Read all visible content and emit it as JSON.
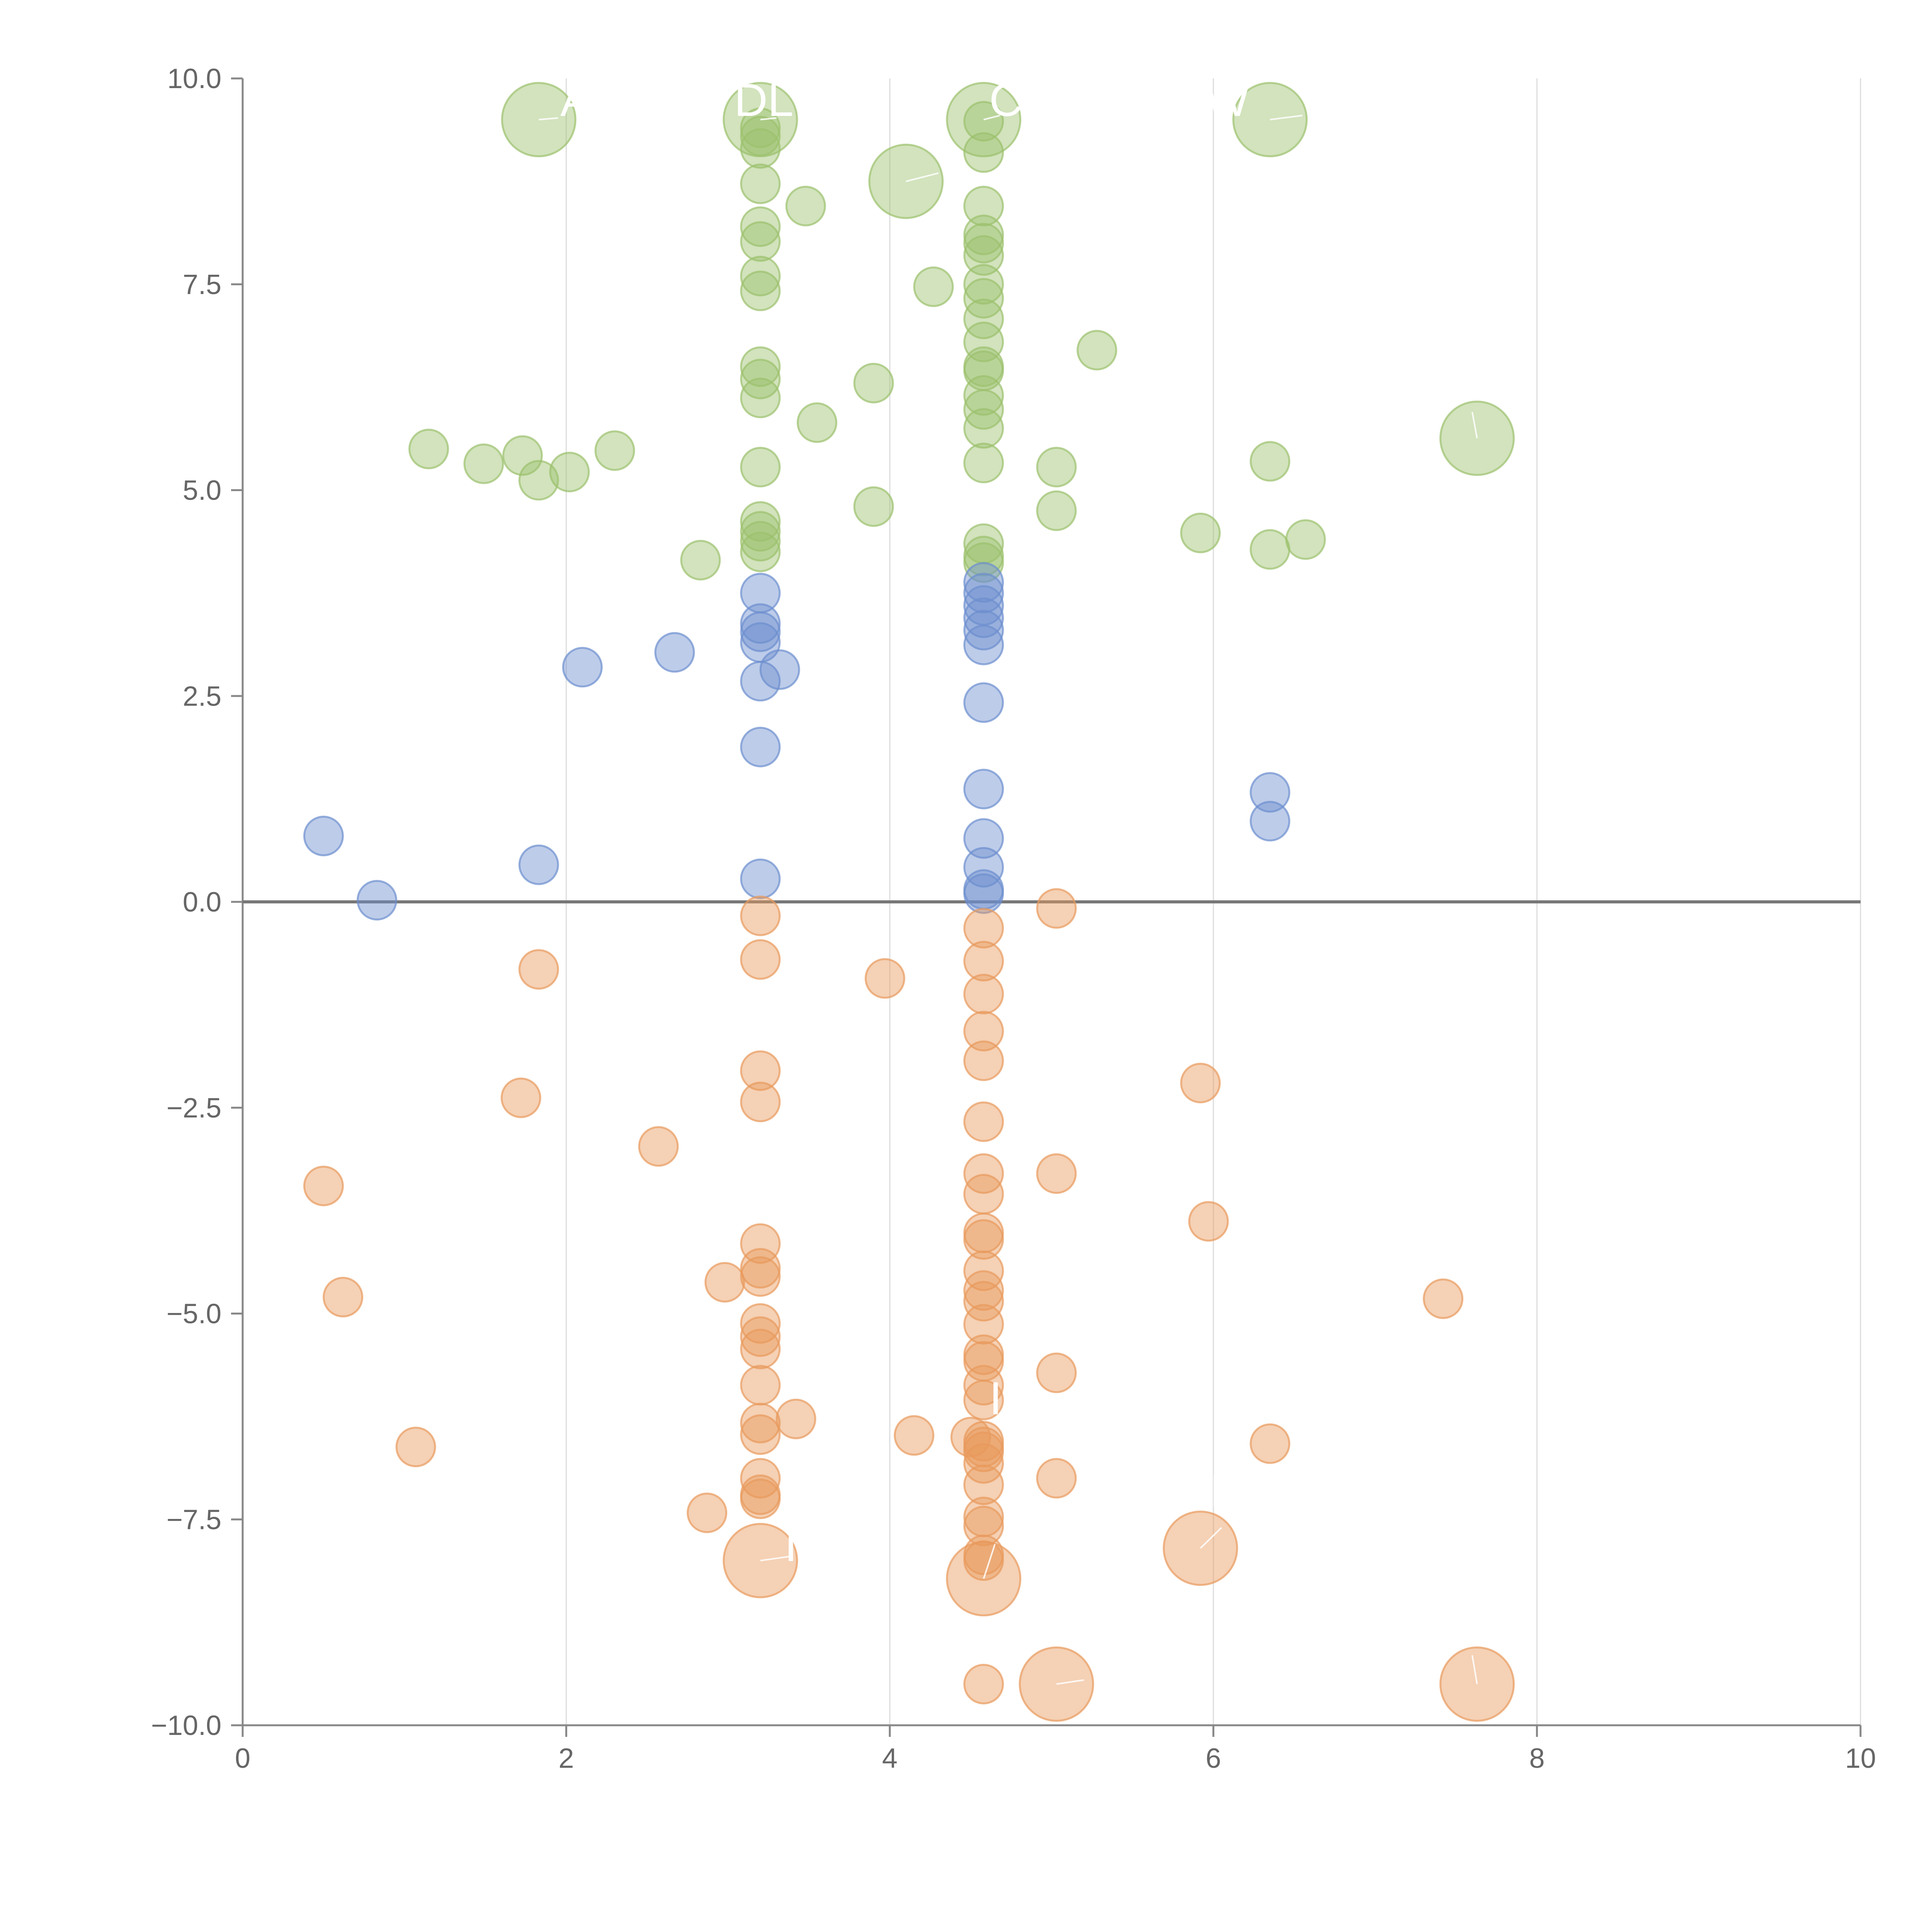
{
  "chart_data": {
    "type": "scatter",
    "title": "",
    "xlabel": "",
    "ylabel": "",
    "xlim": [
      0,
      10
    ],
    "ylim": [
      -10,
      10
    ],
    "x_ticks": [
      "0",
      "2",
      "4",
      "6",
      "8",
      "10"
    ],
    "y_ticks": [
      "−10.0",
      "−7.5",
      "−5.0",
      "−2.5",
      "0.0",
      "2.5",
      "5.0",
      "7.5",
      "10.0"
    ],
    "x_tick_values": [
      0,
      2,
      4,
      6,
      8,
      10
    ],
    "y_tick_values": [
      -10,
      -7.5,
      -5,
      -2.5,
      0,
      2.5,
      5,
      7.5,
      10
    ],
    "grid": "vertical",
    "legend": "none",
    "colors": {
      "green": "#9bc06c",
      "blue": "#6c8fcf",
      "orange": "#e89a5c"
    },
    "series": [
      {
        "name": "green",
        "color": "#9bc06c",
        "points": [
          [
            1.83,
            9.5,
            "large"
          ],
          [
            3.2,
            9.5,
            "large"
          ],
          [
            4.58,
            9.5,
            "large"
          ],
          [
            6.35,
            9.5,
            "large"
          ],
          [
            4.1,
            8.75,
            "large"
          ],
          [
            7.63,
            5.63,
            "large"
          ],
          [
            3.2,
            9.4
          ],
          [
            3.2,
            9.3
          ],
          [
            3.2,
            9.15
          ],
          [
            3.2,
            8.72
          ],
          [
            3.2,
            8.2
          ],
          [
            3.2,
            8.02
          ],
          [
            3.2,
            7.6
          ],
          [
            3.2,
            7.42
          ],
          [
            3.2,
            6.5
          ],
          [
            3.2,
            6.35
          ],
          [
            3.2,
            6.12
          ],
          [
            3.2,
            5.28
          ],
          [
            3.2,
            4.62
          ],
          [
            3.2,
            4.5
          ],
          [
            3.2,
            4.38
          ],
          [
            3.2,
            4.25
          ],
          [
            3.48,
            8.45
          ],
          [
            3.55,
            5.82
          ],
          [
            3.9,
            6.3
          ],
          [
            3.9,
            4.8
          ],
          [
            4.27,
            7.47
          ],
          [
            4.58,
            9.48
          ],
          [
            4.58,
            9.1
          ],
          [
            4.58,
            8.45
          ],
          [
            4.58,
            8.1
          ],
          [
            4.58,
            8.0
          ],
          [
            4.58,
            7.85
          ],
          [
            4.58,
            7.5
          ],
          [
            4.58,
            7.33
          ],
          [
            4.58,
            7.08
          ],
          [
            4.58,
            6.8
          ],
          [
            4.58,
            6.5
          ],
          [
            4.58,
            6.45
          ],
          [
            4.58,
            6.15
          ],
          [
            4.58,
            5.98
          ],
          [
            4.58,
            5.75
          ],
          [
            4.58,
            5.33
          ],
          [
            4.58,
            4.35
          ],
          [
            4.58,
            4.2
          ],
          [
            4.58,
            4.12
          ],
          [
            1.15,
            5.5
          ],
          [
            1.49,
            5.32
          ],
          [
            1.73,
            5.42
          ],
          [
            1.83,
            5.12
          ],
          [
            2.02,
            5.22
          ],
          [
            2.3,
            5.48
          ],
          [
            2.83,
            4.15
          ],
          [
            5.03,
            5.28
          ],
          [
            5.03,
            4.75
          ],
          [
            5.28,
            6.7
          ],
          [
            5.92,
            4.48
          ],
          [
            6.35,
            5.35
          ],
          [
            6.35,
            4.28
          ],
          [
            6.57,
            4.4
          ]
        ]
      },
      {
        "name": "blue",
        "color": "#6c8fcf",
        "points": [
          [
            0.5,
            0.8
          ],
          [
            0.83,
            0.02
          ],
          [
            1.83,
            0.45
          ],
          [
            2.1,
            2.85
          ],
          [
            2.67,
            3.03
          ],
          [
            3.2,
            3.75
          ],
          [
            3.2,
            3.38
          ],
          [
            3.2,
            3.28
          ],
          [
            3.2,
            3.15
          ],
          [
            3.2,
            2.68
          ],
          [
            3.32,
            2.82
          ],
          [
            3.2,
            1.88
          ],
          [
            3.2,
            0.28
          ],
          [
            4.58,
            3.88
          ],
          [
            4.58,
            3.75
          ],
          [
            4.58,
            3.6
          ],
          [
            4.58,
            3.45
          ],
          [
            4.58,
            3.3
          ],
          [
            4.58,
            3.12
          ],
          [
            4.58,
            2.42
          ],
          [
            4.58,
            1.37
          ],
          [
            4.58,
            0.77
          ],
          [
            4.58,
            0.42
          ],
          [
            4.58,
            0.15
          ],
          [
            4.58,
            0.1
          ],
          [
            6.35,
            1.33
          ],
          [
            6.35,
            0.98
          ]
        ]
      },
      {
        "name": "orange",
        "color": "#e89a5c",
        "points": [
          [
            3.2,
            -8.0,
            "large"
          ],
          [
            4.58,
            -8.22,
            "large"
          ],
          [
            5.03,
            -9.5,
            "large"
          ],
          [
            5.92,
            -7.85,
            "large"
          ],
          [
            7.63,
            -9.5,
            "large"
          ],
          [
            0.5,
            -3.45
          ],
          [
            0.62,
            -4.8
          ],
          [
            1.07,
            -6.62
          ],
          [
            1.72,
            -2.38
          ],
          [
            1.83,
            -0.82
          ],
          [
            2.57,
            -2.97
          ],
          [
            2.87,
            -7.42
          ],
          [
            2.98,
            -4.62
          ],
          [
            3.2,
            -0.17
          ],
          [
            3.2,
            -0.7
          ],
          [
            3.2,
            -2.05
          ],
          [
            3.2,
            -2.43
          ],
          [
            3.2,
            -4.15
          ],
          [
            3.2,
            -4.45
          ],
          [
            3.2,
            -4.55
          ],
          [
            3.2,
            -5.12
          ],
          [
            3.2,
            -5.28
          ],
          [
            3.2,
            -5.43
          ],
          [
            3.2,
            -5.87
          ],
          [
            3.2,
            -6.33
          ],
          [
            3.2,
            -6.47
          ],
          [
            3.2,
            -7.0
          ],
          [
            3.2,
            -7.2
          ],
          [
            3.2,
            -7.25
          ],
          [
            3.42,
            -6.28
          ],
          [
            3.97,
            -0.93
          ],
          [
            4.15,
            -6.48
          ],
          [
            4.58,
            -0.32
          ],
          [
            4.58,
            -0.72
          ],
          [
            4.58,
            -1.12
          ],
          [
            4.58,
            -1.57
          ],
          [
            4.58,
            -1.93
          ],
          [
            4.58,
            -2.67
          ],
          [
            4.58,
            -3.3
          ],
          [
            4.58,
            -3.55
          ],
          [
            4.58,
            -4.02
          ],
          [
            4.58,
            -4.1
          ],
          [
            4.58,
            -4.48
          ],
          [
            4.58,
            -4.72
          ],
          [
            4.58,
            -4.85
          ],
          [
            4.58,
            -5.13
          ],
          [
            4.58,
            -5.5
          ],
          [
            4.58,
            -5.58
          ],
          [
            4.58,
            -5.87
          ],
          [
            4.58,
            -6.05
          ],
          [
            4.58,
            -6.55
          ],
          [
            4.58,
            -6.62
          ],
          [
            4.58,
            -6.68
          ],
          [
            4.58,
            -6.82
          ],
          [
            4.58,
            -7.08
          ],
          [
            4.58,
            -7.47
          ],
          [
            4.58,
            -7.58
          ],
          [
            4.58,
            -7.93
          ],
          [
            4.58,
            -8.0
          ],
          [
            4.58,
            -9.5
          ],
          [
            4.5,
            -6.5
          ],
          [
            5.03,
            -0.08
          ],
          [
            5.03,
            -3.3
          ],
          [
            5.03,
            -5.72
          ],
          [
            5.03,
            -7.0
          ],
          [
            5.92,
            -2.2
          ],
          [
            5.97,
            -3.88
          ],
          [
            6.35,
            -6.58
          ],
          [
            7.42,
            -4.82
          ]
        ]
      }
    ],
    "annotations": {
      "top_labels": [
        "A",
        "DL",
        "C",
        "W"
      ],
      "bottom_labels": [
        "I",
        "I",
        "I",
        "I"
      ]
    }
  }
}
